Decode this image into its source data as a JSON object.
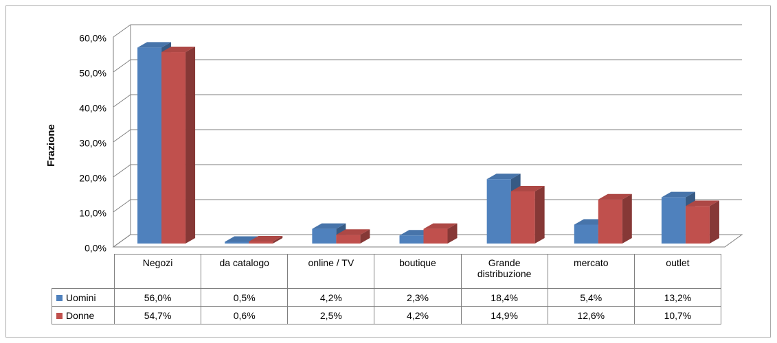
{
  "chart_data": {
    "type": "bar3d",
    "ylabel": "Frazione",
    "categories": [
      "Negozi",
      "da catalogo",
      "online / TV",
      "boutique",
      "Grande distribuzione",
      "mercato",
      "outlet"
    ],
    "series": [
      {
        "name": "Uomini",
        "color": "#4f81bd",
        "values": [
          56.0,
          0.5,
          4.2,
          2.3,
          18.4,
          5.4,
          13.2
        ],
        "value_labels": [
          "56,0%",
          "0,5%",
          "4,2%",
          "2,3%",
          "18,4%",
          "5,4%",
          "13,2%"
        ]
      },
      {
        "name": "Donne",
        "color": "#c0504d",
        "values": [
          54.7,
          0.6,
          2.5,
          4.2,
          14.9,
          12.6,
          10.7
        ],
        "value_labels": [
          "54,7%",
          "0,6%",
          "2,5%",
          "4,2%",
          "14,9%",
          "12,6%",
          "10,7%"
        ]
      }
    ],
    "ylim": [
      0,
      60
    ],
    "yticks": [
      {
        "value": 0,
        "label": "0,0%"
      },
      {
        "value": 10,
        "label": "10,0%"
      },
      {
        "value": 20,
        "label": "20,0%"
      },
      {
        "value": 30,
        "label": "30,0%"
      },
      {
        "value": 40,
        "label": "40,0%"
      },
      {
        "value": 50,
        "label": "50,0%"
      },
      {
        "value": 60,
        "label": "60,0%"
      }
    ],
    "grid": true
  }
}
